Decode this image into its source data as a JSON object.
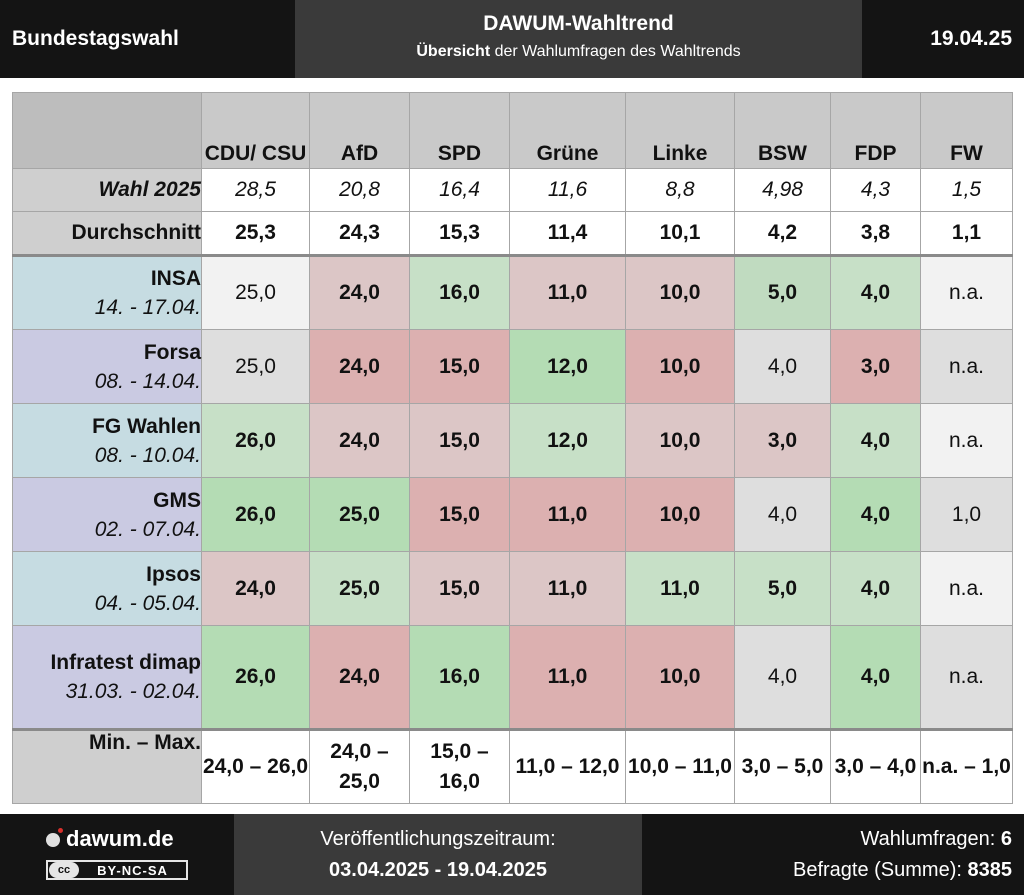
{
  "header": {
    "left": "Bundestagswahl",
    "title": "DAWUM-Wahltrend",
    "subtitle_bold": "Übersicht",
    "subtitle_rest": " der Wahlumfragen des Wahltrends",
    "date": "19.04.25"
  },
  "table": {
    "parties": [
      "CDU/ CSU",
      "AfD",
      "SPD",
      "Grüne",
      "Linke",
      "BSW",
      "FDP",
      "FW"
    ],
    "wahl": {
      "label": "Wahl 2025",
      "values": [
        "28,5",
        "20,8",
        "16,4",
        "11,6",
        "8,8",
        "4,98",
        "4,3",
        "1,5"
      ]
    },
    "avg": {
      "label": "Durchschnitt",
      "values": [
        "25,3",
        "24,3",
        "15,3",
        "11,4",
        "10,1",
        "4,2",
        "3,8",
        "1,1"
      ]
    },
    "polls": [
      {
        "name": "INSA",
        "date": "14. - 17.04.",
        "values": [
          "25,0",
          "24,0",
          "16,0",
          "11,0",
          "10,0",
          "5,0",
          "4,0",
          "n.a."
        ],
        "bold": [
          false,
          true,
          true,
          true,
          true,
          true,
          true,
          false
        ],
        "colors": [
          "#f2f2f2",
          "#dcc6c6",
          "#c7e0c7",
          "#dcc6c6",
          "#dcc6c6",
          "#c0dbc0",
          "#c7e0c7",
          "#f2f2f2"
        ]
      },
      {
        "name": "Forsa",
        "date": "08. - 14.04.",
        "values": [
          "25,0",
          "24,0",
          "15,0",
          "12,0",
          "10,0",
          "4,0",
          "3,0",
          "n.a."
        ],
        "bold": [
          false,
          true,
          true,
          true,
          true,
          false,
          true,
          false
        ],
        "colors": [
          "#dedede",
          "#dcb0b0",
          "#dcb0b0",
          "#b4dcb4",
          "#dcb0b0",
          "#dedede",
          "#dcb0b0",
          "#dedede"
        ]
      },
      {
        "name": "FG Wahlen",
        "date": "08. - 10.04.",
        "values": [
          "26,0",
          "24,0",
          "15,0",
          "12,0",
          "10,0",
          "3,0",
          "4,0",
          "n.a."
        ],
        "bold": [
          true,
          true,
          true,
          true,
          true,
          true,
          true,
          false
        ],
        "colors": [
          "#c7e0c7",
          "#dcc6c6",
          "#dcc6c6",
          "#c7e0c7",
          "#dcc6c6",
          "#dcc6c6",
          "#c7e0c7",
          "#f2f2f2"
        ]
      },
      {
        "name": "GMS",
        "date": "02. - 07.04.",
        "values": [
          "26,0",
          "25,0",
          "15,0",
          "11,0",
          "10,0",
          "4,0",
          "4,0",
          "1,0"
        ],
        "bold": [
          true,
          true,
          true,
          true,
          true,
          false,
          true,
          false
        ],
        "colors": [
          "#b4dcb4",
          "#b4dcb4",
          "#dcb0b0",
          "#dcb0b0",
          "#dcb0b0",
          "#dedede",
          "#b4dcb4",
          "#dedede"
        ]
      },
      {
        "name": "Ipsos",
        "date": "04. - 05.04.",
        "values": [
          "24,0",
          "25,0",
          "15,0",
          "11,0",
          "11,0",
          "5,0",
          "4,0",
          "n.a."
        ],
        "bold": [
          true,
          true,
          true,
          true,
          true,
          true,
          true,
          false
        ],
        "colors": [
          "#dcc6c6",
          "#c7e0c7",
          "#dcc6c6",
          "#dcc6c6",
          "#c7e0c7",
          "#c7e0c7",
          "#c7e0c7",
          "#f2f2f2"
        ]
      },
      {
        "name": "Infratest dimap",
        "date": "31.03. - 02.04.",
        "values": [
          "26,0",
          "24,0",
          "16,0",
          "11,0",
          "10,0",
          "4,0",
          "4,0",
          "n.a."
        ],
        "bold": [
          true,
          true,
          true,
          true,
          true,
          false,
          true,
          false
        ],
        "colors": [
          "#b4dcb4",
          "#dcb0b0",
          "#b4dcb4",
          "#dcb0b0",
          "#dcb0b0",
          "#dedede",
          "#b4dcb4",
          "#dedede"
        ]
      }
    ],
    "label_colors": [
      "#c6dce2",
      "#cacae2"
    ],
    "minmax": {
      "label": "Min. – Max.",
      "values": [
        "24,0 – 26,0",
        "24,0 – 25,0",
        "15,0 – 16,0",
        "11,0 – 12,0",
        "10,0 – 11,0",
        "3,0 – 5,0",
        "3,0 – 4,0",
        "n.a. – 1,0"
      ]
    }
  },
  "footer": {
    "logo": "dawum.de",
    "license": "BY-NC-SA",
    "cc": "cc",
    "period_label": "Veröffentlichungszeitraum:",
    "period": "03.04.2025 - 19.04.2025",
    "polls_label": "Wahlumfragen: ",
    "polls_count": "6",
    "respondents_label": "Befragte (Summe): ",
    "respondents_count": "8385"
  }
}
